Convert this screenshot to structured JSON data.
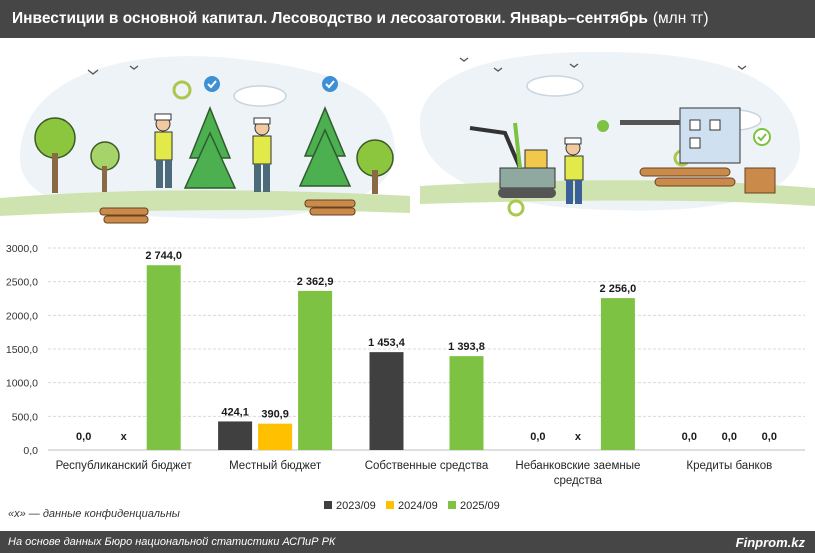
{
  "header": {
    "title": "Инвестиции в основной капитал. Лесоводство и лесозаготовки. Январь–сентябрь",
    "unit": "(млн тг)"
  },
  "footnote": "«х» — данные конфиденциальны",
  "footer": {
    "source": "На основе данных Бюро национальной статистики АСПиР РК",
    "brand": "Finprom.kz"
  },
  "illustration": {
    "icons": [
      "gear-icon",
      "checkmark-badge-icon",
      "tree-icon",
      "lumberjack-icon",
      "log-pile-icon",
      "excavator-icon",
      "sawmill-icon",
      "bird-icon",
      "cloud-icon"
    ]
  },
  "chart_data": {
    "type": "bar",
    "title": "",
    "xlabel": "",
    "ylabel": "",
    "ylim": [
      0,
      3000
    ],
    "yticks": [
      "0,0",
      "500,0",
      "1000,0",
      "1500,0",
      "2000,0",
      "2500,0",
      "3000,0"
    ],
    "grid": true,
    "legend_position": "bottom",
    "categories": [
      [
        "Республиканский бюджет"
      ],
      [
        "Местный бюджет"
      ],
      [
        "Собственные средства"
      ],
      [
        "Небанковские заемные",
        "средства"
      ],
      [
        "Кредиты банков"
      ]
    ],
    "series": [
      {
        "name": "2023/09",
        "color": "#404040",
        "values": [
          0,
          424.1,
          1453.4,
          0,
          0
        ],
        "labels": [
          "0,0",
          "424,1",
          "1 453,4",
          "0,0",
          "0,0"
        ]
      },
      {
        "name": "2024/09",
        "color": "#FFC000",
        "values": [
          null,
          390.9,
          null,
          null,
          0
        ],
        "labels": [
          "х",
          "390,9",
          "",
          "х",
          "0,0"
        ]
      },
      {
        "name": "2025/09",
        "color": "#7DC242",
        "values": [
          2744.0,
          2362.9,
          1393.8,
          2256.0,
          0
        ],
        "labels": [
          "2 744,0",
          "2 362,9",
          "1 393,8",
          "2 256,0",
          "0,0"
        ]
      }
    ]
  }
}
